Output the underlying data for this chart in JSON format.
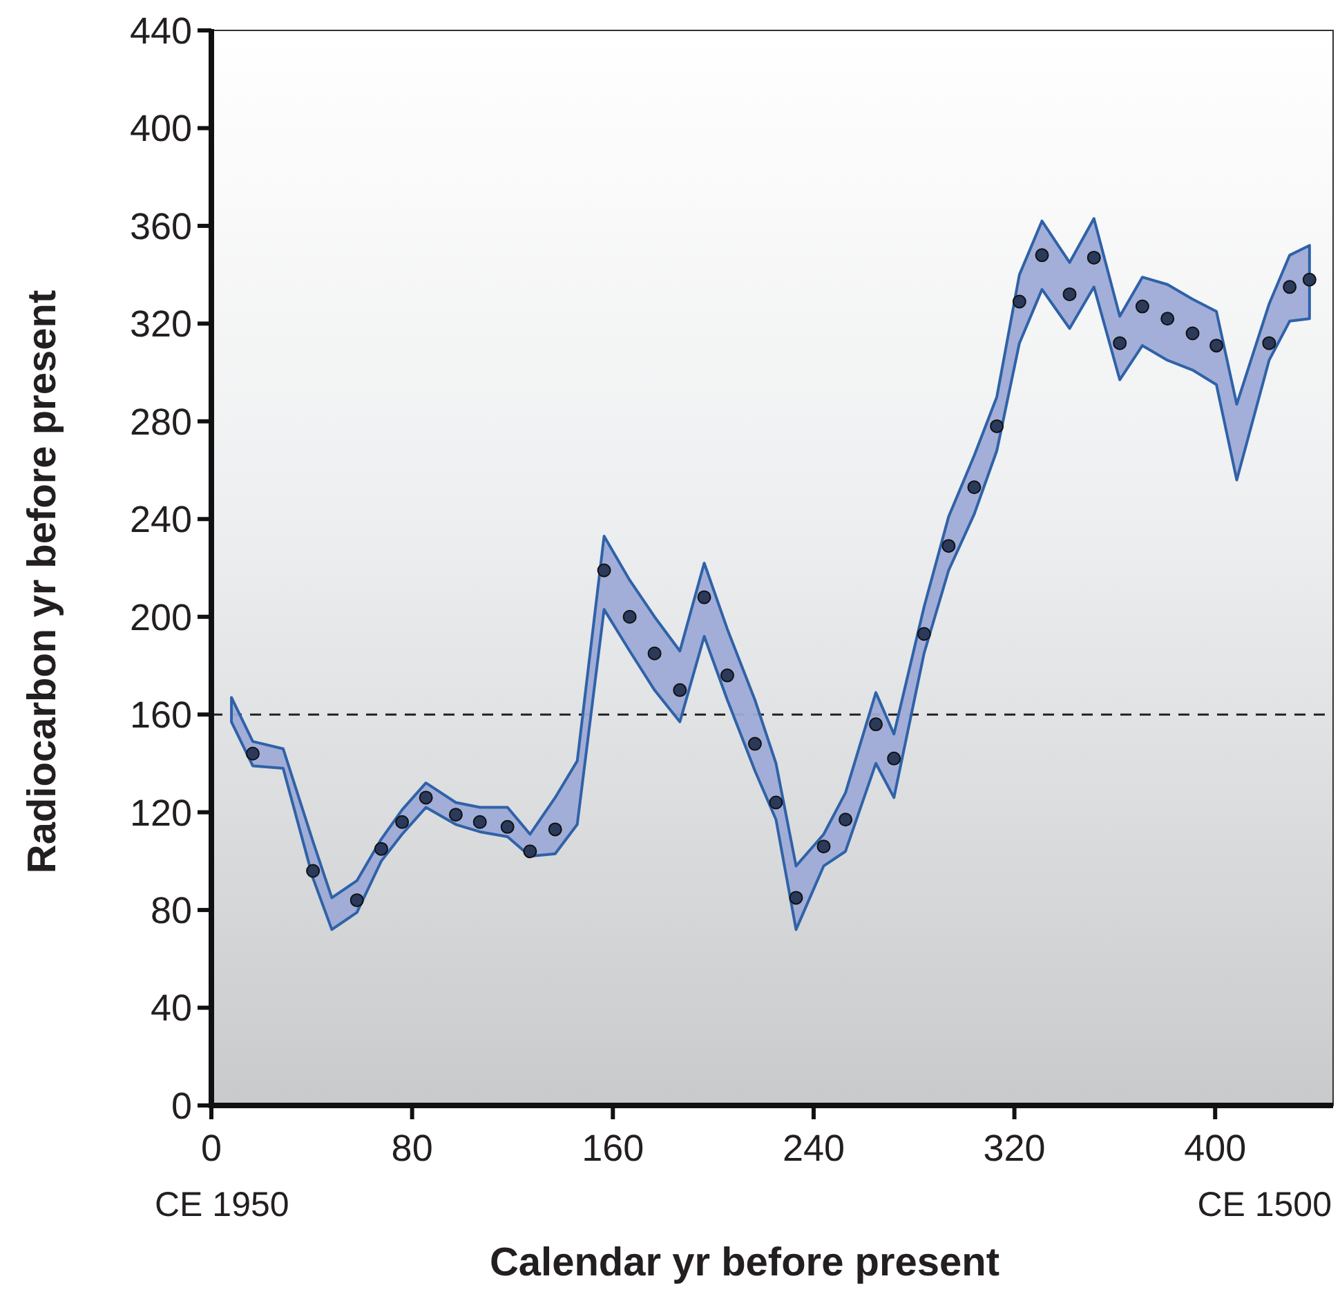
{
  "chart_data": {
    "type": "scatter",
    "xlabel": "Calendar yr before present",
    "ylabel": "Radiocarbon yr before present",
    "xlim": [
      0,
      447
    ],
    "ylim": [
      0,
      440
    ],
    "xticks": [
      0,
      80,
      160,
      240,
      320,
      400
    ],
    "yticks": [
      0,
      40,
      80,
      120,
      160,
      200,
      240,
      280,
      320,
      360,
      400,
      440
    ],
    "grid": false,
    "marker": "circle",
    "ref_lines": [
      {
        "axis": "y",
        "value": 160,
        "line_style": "dashed",
        "color": "#222222"
      }
    ],
    "annotations": [
      "CE 1950",
      "CE 1500"
    ],
    "series": [
      {
        "color": "#2b3a5a",
        "x": [
          8,
          16.5,
          28.6,
          40.5,
          48,
          58,
          67.7,
          76,
          85.5,
          97.4,
          107,
          118,
          127,
          137,
          145.8,
          156.5,
          166.7,
          176.6,
          186.7,
          196.4,
          205.6,
          216.6,
          225,
          233,
          244,
          252.7,
          264.8,
          272,
          284,
          293.8,
          304,
          313,
          322,
          331,
          342,
          351.7,
          362,
          371,
          381,
          391,
          400.5,
          408.6,
          421.5,
          429.7,
          437.6
        ],
        "values": [
          null,
          144,
          null,
          96,
          null,
          84,
          105,
          116,
          126,
          119,
          116,
          114,
          104,
          113,
          null,
          219,
          200,
          185,
          170,
          208,
          176,
          148,
          124,
          85,
          106,
          117,
          156,
          142,
          193,
          229,
          253,
          278,
          329,
          348,
          332,
          347,
          312,
          327,
          322,
          316,
          311,
          null,
          312,
          335,
          338
        ],
        "lower": [
          157,
          139,
          138,
          93,
          72,
          79,
          100,
          111,
          122,
          115,
          112,
          110,
          102,
          103,
          115,
          203,
          186,
          170,
          157,
          192,
          166,
          137,
          117,
          72,
          98,
          104,
          140,
          126,
          185,
          219,
          242,
          268,
          312,
          334,
          318,
          335,
          297,
          311,
          305,
          301,
          295,
          256,
          305,
          321,
          322
        ],
        "upper": [
          167,
          149,
          146,
          108,
          85,
          92,
          109,
          121,
          132,
          124,
          122,
          122,
          111,
          126,
          141,
          233,
          215,
          200,
          186,
          222,
          195,
          166,
          140,
          98,
          111,
          128,
          169,
          152,
          204,
          241,
          266,
          290,
          340,
          362,
          345,
          363,
          323,
          339,
          336,
          330,
          325,
          287,
          328,
          348,
          352
        ]
      }
    ]
  }
}
